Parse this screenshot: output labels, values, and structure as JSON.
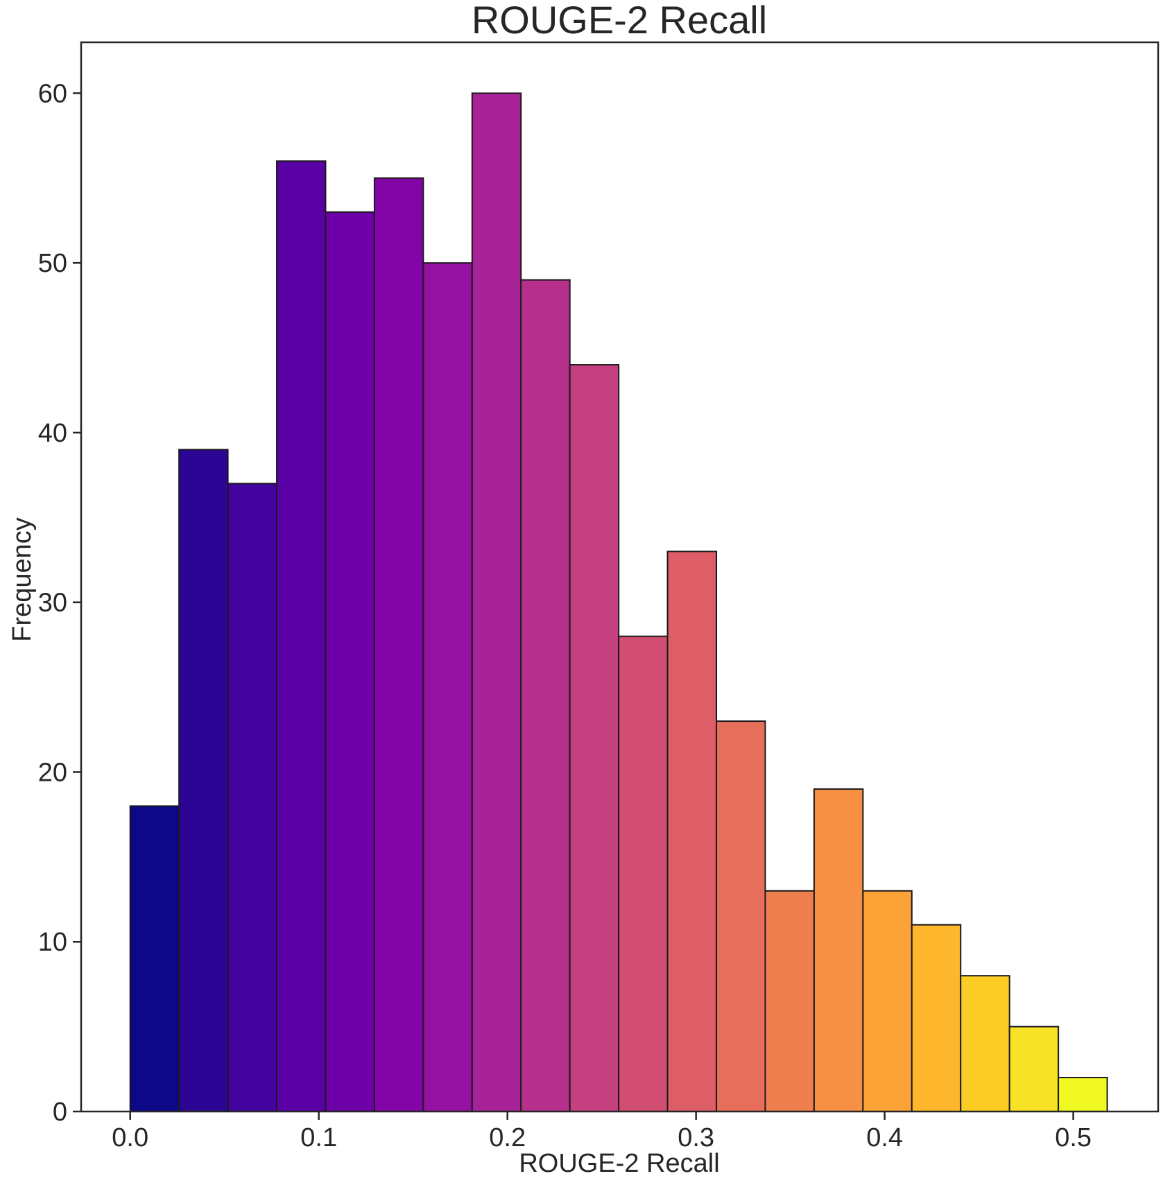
{
  "chart_data": {
    "type": "bar",
    "title": "ROUGE-2 Recall",
    "xlabel": "ROUGE-2 Recall",
    "ylabel": "Frequency",
    "bin_start": 0.0,
    "bin_width": 0.0259,
    "values": [
      18,
      39,
      37,
      56,
      53,
      55,
      50,
      60,
      49,
      44,
      28,
      33,
      23,
      13,
      19,
      13,
      11,
      8,
      5,
      2
    ],
    "colors": [
      "#0d0887",
      "#2c0594",
      "#43039e",
      "#5901a5",
      "#6e00a8",
      "#8305a7",
      "#9511a1",
      "#a72197",
      "#b6308b",
      "#c5407e",
      "#d14e72",
      "#dd5e66",
      "#e76e5b",
      "#f07f4f",
      "#f79044",
      "#fca338",
      "#feb72d",
      "#fccd25",
      "#f7e225",
      "#f0f921"
    ],
    "xlim": [
      -0.026,
      0.545
    ],
    "ylim": [
      0,
      63
    ],
    "xticks": [
      0.0,
      0.1,
      0.2,
      0.3,
      0.4,
      0.5
    ],
    "xtick_labels": [
      "0.0",
      "0.1",
      "0.2",
      "0.3",
      "0.4",
      "0.5"
    ],
    "yticks": [
      0,
      10,
      20,
      30,
      40,
      50,
      60
    ],
    "ytick_labels": [
      "0",
      "10",
      "20",
      "30",
      "40",
      "50",
      "60"
    ],
    "grid": false,
    "legend": "none"
  }
}
